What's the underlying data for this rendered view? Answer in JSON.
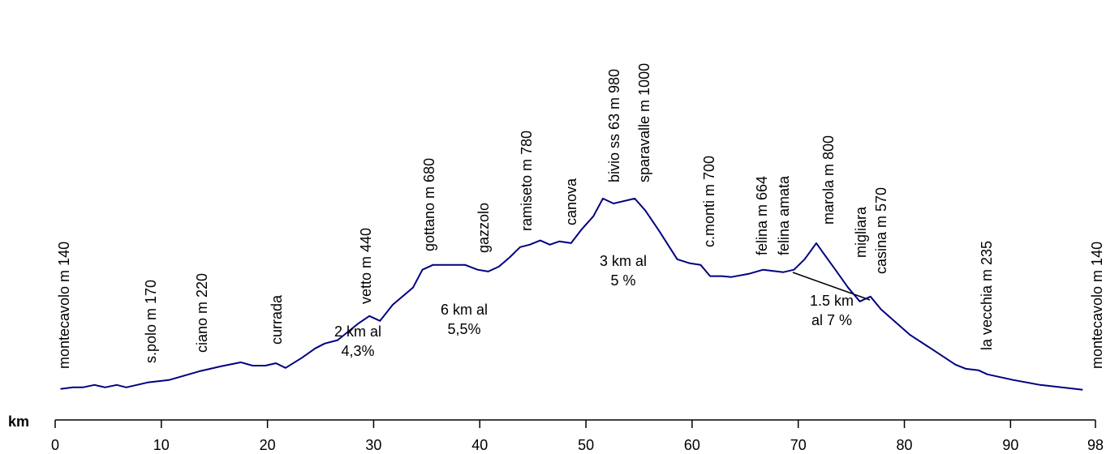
{
  "chart_data": {
    "type": "line",
    "xlabel": "km",
    "xlim": [
      0,
      98
    ],
    "xticks": [
      0,
      10,
      20,
      30,
      40,
      50,
      60,
      70,
      80,
      90,
      98
    ],
    "ylim": [
      0,
      1800
    ],
    "color": "#000080",
    "x": [
      0.5,
      1.7,
      2.6,
      3.7,
      4.7,
      5.8,
      6.7,
      7.7,
      8.7,
      10.7,
      11.8,
      13.6,
      15.6,
      17.5,
      18.6,
      19.8,
      20.8,
      21.7,
      23.2,
      24.5,
      25.4,
      26.6,
      28.5,
      29.6,
      30.6,
      31.8,
      33.7,
      34.6,
      35.6,
      38.6,
      39.8,
      40.8,
      41.8,
      42.8,
      43.8,
      44.7,
      45.7,
      46.6,
      47.5,
      48.6,
      49.6,
      50.7,
      51.6,
      52.6,
      54.6,
      55.6,
      56.9,
      58.6,
      59.8,
      60.8,
      61.7,
      62.8,
      63.7,
      65.4,
      66.7,
      68.6,
      69.6,
      70.6,
      71.7,
      72.5,
      73.5,
      74.7,
      75.8,
      76.8,
      77.8,
      80.5,
      82.7,
      84.8,
      85.8,
      87.0,
      87.8,
      90.3,
      92.8,
      96.8
    ],
    "values": [
      140,
      147,
      147,
      158,
      147,
      158,
      147,
      158,
      169,
      180,
      195,
      220,
      242,
      260,
      245,
      245,
      256,
      235,
      279,
      323,
      345,
      360,
      433,
      469,
      447,
      520,
      597,
      678,
      700,
      700,
      678,
      670,
      692,
      733,
      780,
      791,
      810,
      791,
      806,
      798,
      860,
      919,
      999,
      977,
      999,
      945,
      853,
      725,
      707,
      700,
      649,
      649,
      645,
      660,
      678,
      667,
      678,
      725,
      798,
      744,
      678,
      597,
      535,
      557,
      499,
      385,
      316,
      250,
      231,
      224,
      206,
      180,
      158,
      136
    ],
    "place_labels": [
      "montecavolo m 140",
      "s.polo m 170",
      "ciano m 220",
      "currada",
      "vetto m 440",
      "gottano m 680",
      "gazzolo",
      "ramiseto m 780",
      "canova",
      "bivio ss 63 m  980",
      "sparavalle m 1000",
      "c.monti m 700",
      "felina m 664",
      "felina amata",
      "marola m 800",
      "migliara",
      "casina m 570",
      "la vecchia m 235",
      "montecavolo m 140"
    ],
    "grade_labels": [
      [
        "2 km al",
        "4,3%"
      ],
      [
        "6 km al",
        "5,5%"
      ],
      [
        "3  km al",
        "5 %"
      ],
      [
        "1.5  km",
        "al 7 %"
      ]
    ]
  }
}
